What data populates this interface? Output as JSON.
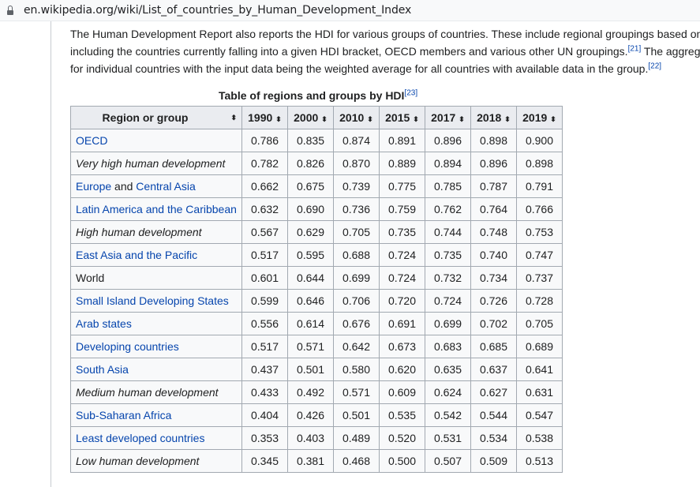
{
  "browser": {
    "url": "en.wikipedia.org/wiki/List_of_countries_by_Human_Development_Index"
  },
  "intro": {
    "line1": "The Human Development Report also reports the HDI for various groups of countries. These include regional groupings based on",
    "line2a": "including the countries currently falling into a given HDI bracket, OECD members and various other UN groupings.",
    "ref1": "[21]",
    "line2b": " The aggrega",
    "line3a": "for individual countries with the input data being the weighted average for all countries with available data in the group.",
    "ref2": "[22]"
  },
  "table": {
    "caption": "Table of regions and groups by HDI",
    "caption_ref": "[23]",
    "sort_icon": "⬍",
    "headers": [
      "Region or group",
      "1990",
      "2000",
      "2010",
      "2015",
      "2017",
      "2018",
      "2019"
    ],
    "rows": [
      {
        "name": "OECD",
        "style": "link",
        "values": [
          "0.786",
          "0.835",
          "0.874",
          "0.891",
          "0.896",
          "0.898",
          "0.900"
        ]
      },
      {
        "name": "Very high human development",
        "style": "italic",
        "values": [
          "0.782",
          "0.826",
          "0.870",
          "0.889",
          "0.894",
          "0.896",
          "0.898"
        ]
      },
      {
        "name_a": "Europe",
        "name_and": " and ",
        "name_b": "Central Asia",
        "style": "split",
        "values": [
          "0.662",
          "0.675",
          "0.739",
          "0.775",
          "0.785",
          "0.787",
          "0.791"
        ]
      },
      {
        "name": "Latin America and the Caribbean",
        "style": "link",
        "values": [
          "0.632",
          "0.690",
          "0.736",
          "0.759",
          "0.762",
          "0.764",
          "0.766"
        ]
      },
      {
        "name": "High human development",
        "style": "italic",
        "values": [
          "0.567",
          "0.629",
          "0.705",
          "0.735",
          "0.744",
          "0.748",
          "0.753"
        ]
      },
      {
        "name": "East Asia and the Pacific",
        "style": "link",
        "values": [
          "0.517",
          "0.595",
          "0.688",
          "0.724",
          "0.735",
          "0.740",
          "0.747"
        ]
      },
      {
        "name": "World",
        "style": "plain",
        "values": [
          "0.601",
          "0.644",
          "0.699",
          "0.724",
          "0.732",
          "0.734",
          "0.737"
        ]
      },
      {
        "name": "Small Island Developing States",
        "style": "link",
        "values": [
          "0.599",
          "0.646",
          "0.706",
          "0.720",
          "0.724",
          "0.726",
          "0.728"
        ]
      },
      {
        "name": "Arab states",
        "style": "link",
        "values": [
          "0.556",
          "0.614",
          "0.676",
          "0.691",
          "0.699",
          "0.702",
          "0.705"
        ]
      },
      {
        "name": "Developing countries",
        "style": "link",
        "values": [
          "0.517",
          "0.571",
          "0.642",
          "0.673",
          "0.683",
          "0.685",
          "0.689"
        ]
      },
      {
        "name": "South Asia",
        "style": "link",
        "values": [
          "0.437",
          "0.501",
          "0.580",
          "0.620",
          "0.635",
          "0.637",
          "0.641"
        ]
      },
      {
        "name": "Medium human development",
        "style": "italic",
        "values": [
          "0.433",
          "0.492",
          "0.571",
          "0.609",
          "0.624",
          "0.627",
          "0.631"
        ]
      },
      {
        "name": "Sub-Saharan Africa",
        "style": "link",
        "values": [
          "0.404",
          "0.426",
          "0.501",
          "0.535",
          "0.542",
          "0.544",
          "0.547"
        ]
      },
      {
        "name": "Least developed countries",
        "style": "link",
        "values": [
          "0.353",
          "0.403",
          "0.489",
          "0.520",
          "0.531",
          "0.534",
          "0.538"
        ]
      },
      {
        "name": "Low human development",
        "style": "italic",
        "values": [
          "0.345",
          "0.381",
          "0.468",
          "0.500",
          "0.507",
          "0.509",
          "0.513"
        ]
      }
    ]
  }
}
